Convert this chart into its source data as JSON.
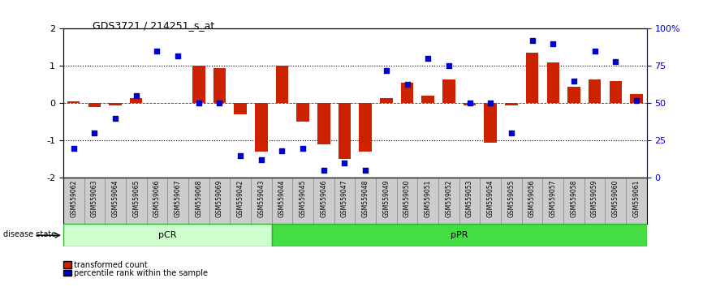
{
  "title": "GDS3721 / 214251_s_at",
  "samples": [
    "GSM559062",
    "GSM559063",
    "GSM559064",
    "GSM559065",
    "GSM559066",
    "GSM559067",
    "GSM559068",
    "GSM559069",
    "GSM559042",
    "GSM559043",
    "GSM559044",
    "GSM559045",
    "GSM559046",
    "GSM559047",
    "GSM559048",
    "GSM559049",
    "GSM559050",
    "GSM559051",
    "GSM559052",
    "GSM559053",
    "GSM559054",
    "GSM559055",
    "GSM559056",
    "GSM559057",
    "GSM559058",
    "GSM559059",
    "GSM559060",
    "GSM559061"
  ],
  "transformed_count": [
    0.05,
    -0.1,
    -0.05,
    0.15,
    0.0,
    0.0,
    1.0,
    0.95,
    -0.3,
    -1.3,
    1.0,
    -0.5,
    -1.1,
    -1.5,
    -1.3,
    0.15,
    0.55,
    0.2,
    0.65,
    -0.05,
    -1.05,
    -0.05,
    1.35,
    1.1,
    0.45,
    0.65,
    0.6,
    0.25
  ],
  "percentile_rank": [
    20,
    30,
    40,
    55,
    85,
    82,
    50,
    50,
    15,
    12,
    18,
    20,
    5,
    10,
    5,
    72,
    63,
    80,
    75,
    50,
    50,
    30,
    92,
    90,
    65,
    85,
    78,
    52
  ],
  "pCR_count": 10,
  "pPR_count": 18,
  "bar_color": "#cc2200",
  "dot_color": "#0000cc",
  "pCR_color": "#ccffcc",
  "pPR_color": "#44dd44",
  "ylim": [
    -2,
    2
  ],
  "y2lim": [
    0,
    100
  ],
  "yticks": [
    -2,
    -1,
    0,
    1,
    2
  ],
  "y2ticks": [
    0,
    25,
    50,
    75,
    100
  ],
  "y2ticklabels": [
    "0",
    "25",
    "50",
    "75",
    "100%"
  ],
  "hline_color": "#cc0000",
  "dotted_color": "black"
}
